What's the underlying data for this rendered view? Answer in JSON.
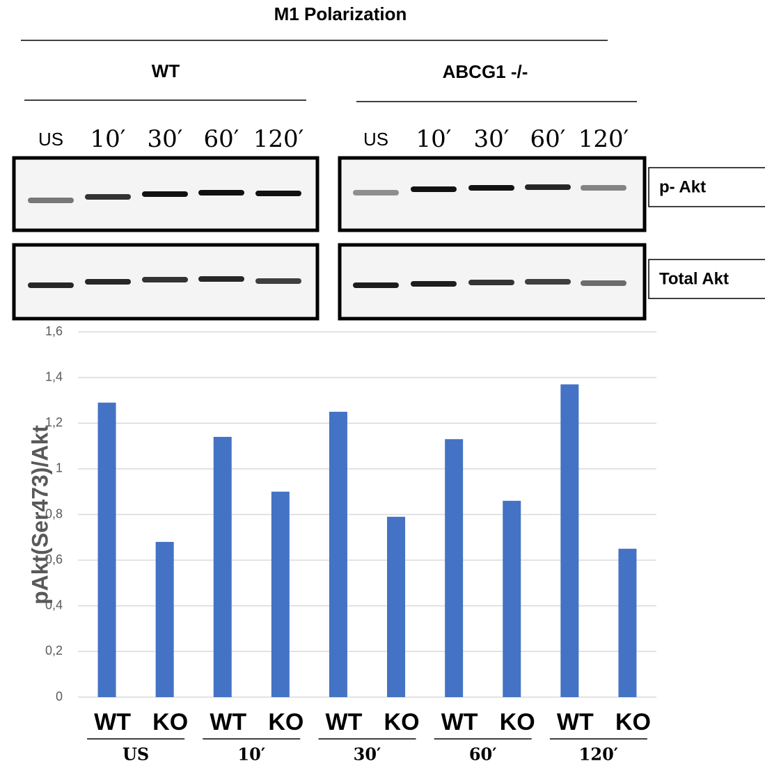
{
  "header": {
    "title": "M1 Polarization",
    "groups": [
      "WT",
      "ABCG1  -/-"
    ]
  },
  "blot": {
    "lanes": [
      "US",
      "10′",
      "30′",
      "60′",
      "120′"
    ],
    "rows": [
      "p- Akt",
      "Total Akt"
    ]
  },
  "chart_data": {
    "type": "bar",
    "y_label": "pAkt(Ser473)/Akt",
    "categories": [
      "WT",
      "KO",
      "WT",
      "KO",
      "WT",
      "KO",
      "WT",
      "KO",
      "WT",
      "KO"
    ],
    "groups": [
      "US",
      "10′",
      "30′",
      "60′",
      "120′"
    ],
    "values": [
      1.29,
      0.68,
      1.14,
      0.9,
      1.25,
      0.79,
      1.13,
      0.86,
      1.37,
      0.65
    ],
    "color": "#4472c4",
    "ylim": [
      0,
      1.6
    ],
    "yticks": [
      0,
      {
        "value": 0.2,
        "label": "0,2"
      },
      {
        "value": 0.4,
        "label": "0,4"
      },
      {
        "value": 0.6,
        "label": "0,6"
      },
      {
        "value": 0.8,
        "label": "0,8"
      },
      1,
      {
        "value": 1.2,
        "label": "1,2"
      },
      {
        "value": 1.4,
        "label": "1,4"
      },
      {
        "value": 1.6,
        "label": "1,6"
      }
    ],
    "grid": true
  }
}
